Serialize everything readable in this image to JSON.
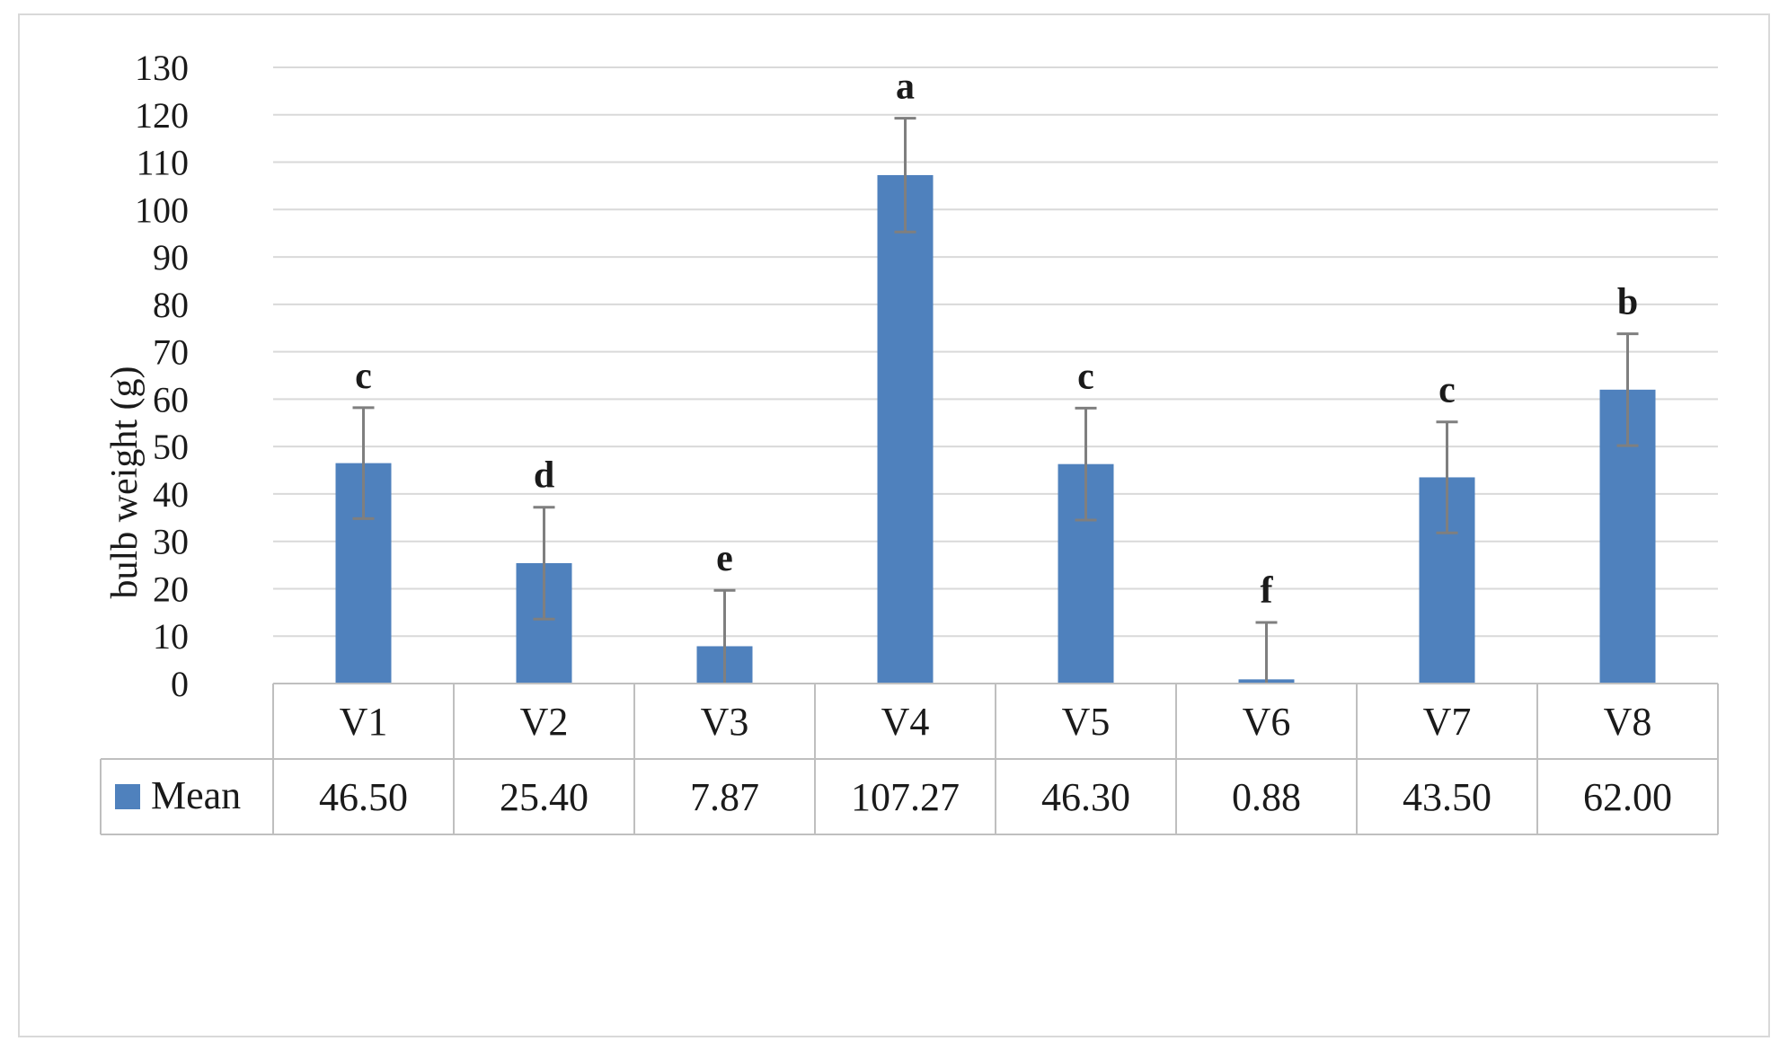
{
  "chart_data": {
    "type": "bar",
    "ylabel": "bulb weight (g)",
    "ylim": [
      0,
      130
    ],
    "yticks": [
      0,
      10,
      20,
      30,
      40,
      50,
      60,
      70,
      80,
      90,
      100,
      110,
      120,
      130
    ],
    "categories": [
      "V1",
      "V2",
      "V3",
      "V4",
      "V5",
      "V6",
      "V7",
      "V8"
    ],
    "series": [
      {
        "name": "Mean",
        "values": [
          46.5,
          25.4,
          7.87,
          107.27,
          46.3,
          0.88,
          43.5,
          62.0
        ],
        "labels": [
          "46.50",
          "25.40",
          "7.87",
          "107.27",
          "46.30",
          "0.88",
          "43.50",
          "62.00"
        ],
        "error": [
          11.7,
          11.8,
          11.8,
          12.0,
          11.8,
          12.0,
          11.7,
          11.8
        ],
        "significance": [
          "c",
          "d",
          "e",
          "a",
          "c",
          "f",
          "c",
          "b"
        ],
        "color": "#4f81bd"
      }
    ],
    "grid": true,
    "legend": "data-table",
    "data_table": true
  }
}
